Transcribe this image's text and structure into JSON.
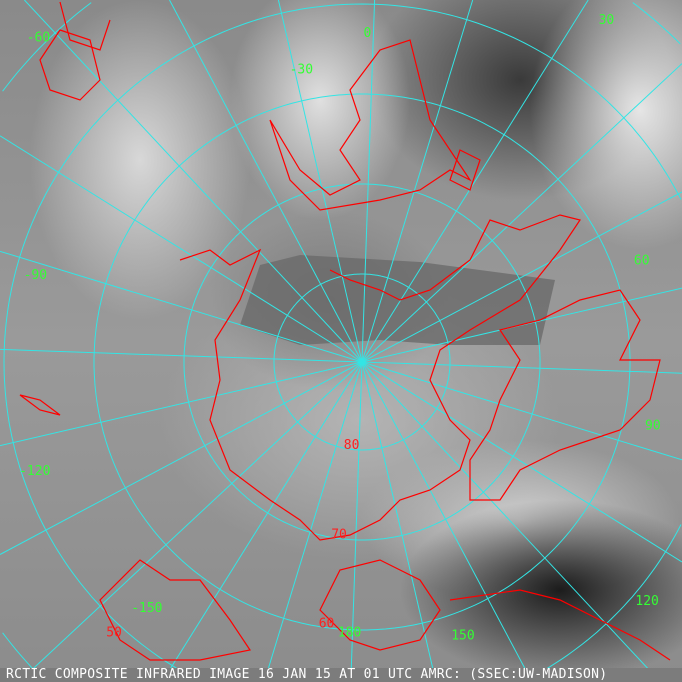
{
  "caption": "RCTIC COMPOSITE INFRARED IMAGE 16 JAN 15 AT 01 UTC AMRC: (SSEC:UW-MADISON)",
  "longitude_labels": [
    "-30",
    "0",
    "30",
    "-60",
    "60",
    "-90",
    "90",
    "-120",
    "120",
    "-150",
    "150",
    "180"
  ],
  "latitude_labels": [
    "80",
    "70",
    "60",
    "50"
  ],
  "colors": {
    "graticule": "#33e5e5",
    "coastline": "#ff0000",
    "longitude_label": "#33ff33",
    "latitude_label": "#ff2020",
    "caption_bg": "#7c7c7c"
  }
}
